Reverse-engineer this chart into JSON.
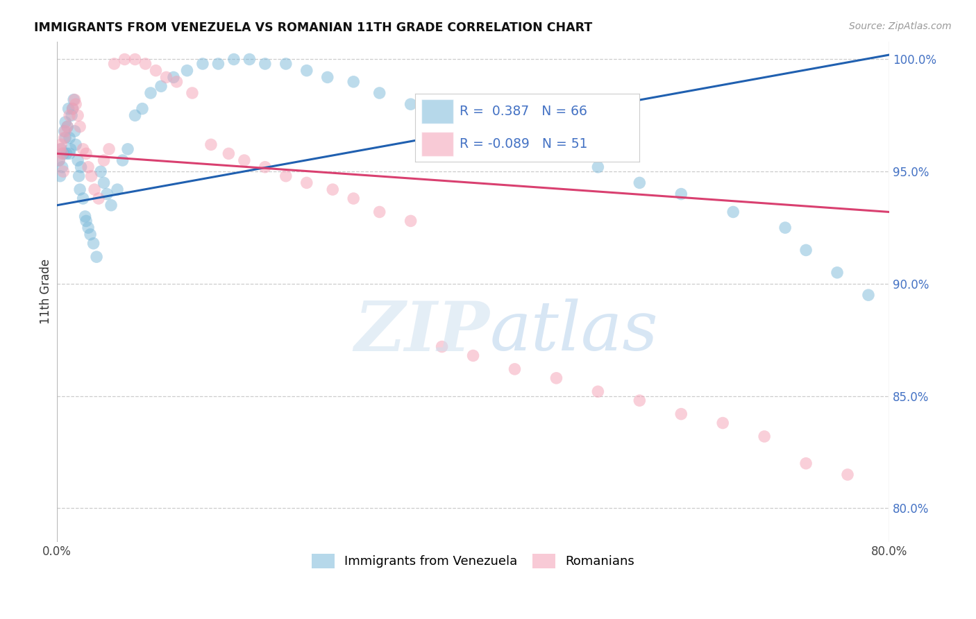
{
  "title": "IMMIGRANTS FROM VENEZUELA VS ROMANIAN 11TH GRADE CORRELATION CHART",
  "source": "Source: ZipAtlas.com",
  "ylabel": "11th Grade",
  "xlim": [
    0.0,
    0.8
  ],
  "ylim": [
    0.785,
    1.008
  ],
  "yticks": [
    0.8,
    0.85,
    0.9,
    0.95,
    1.0
  ],
  "ytick_labels": [
    "80.0%",
    "85.0%",
    "90.0%",
    "95.0%",
    "100.0%"
  ],
  "blue_label": "Immigrants from Venezuela",
  "pink_label": "Romanians",
  "blue_R": "0.387",
  "blue_N": "66",
  "pink_R": "-0.089",
  "pink_N": "51",
  "blue_color": "#7ab8d9",
  "pink_color": "#f4a0b5",
  "blue_line_color": "#2060b0",
  "pink_line_color": "#d94070",
  "background_color": "#ffffff",
  "blue_line_x0": 0.0,
  "blue_line_y0": 0.935,
  "blue_line_x1": 0.8,
  "blue_line_y1": 1.002,
  "pink_line_x0": 0.0,
  "pink_line_y0": 0.958,
  "pink_line_x1": 0.8,
  "pink_line_y1": 0.932,
  "blue_x": [
    0.002,
    0.003,
    0.004,
    0.005,
    0.006,
    0.007,
    0.008,
    0.008,
    0.009,
    0.01,
    0.011,
    0.012,
    0.012,
    0.013,
    0.014,
    0.015,
    0.016,
    0.017,
    0.018,
    0.02,
    0.021,
    0.022,
    0.023,
    0.025,
    0.027,
    0.028,
    0.03,
    0.032,
    0.035,
    0.038,
    0.042,
    0.045,
    0.048,
    0.052,
    0.058,
    0.063,
    0.068,
    0.075,
    0.082,
    0.09,
    0.1,
    0.112,
    0.125,
    0.14,
    0.155,
    0.17,
    0.185,
    0.2,
    0.22,
    0.24,
    0.26,
    0.285,
    0.31,
    0.34,
    0.37,
    0.4,
    0.44,
    0.48,
    0.52,
    0.56,
    0.6,
    0.65,
    0.7,
    0.72,
    0.75,
    0.78
  ],
  "blue_y": [
    0.955,
    0.948,
    0.96,
    0.952,
    0.958,
    0.968,
    0.972,
    0.965,
    0.958,
    0.97,
    0.978,
    0.965,
    0.958,
    0.96,
    0.975,
    0.978,
    0.982,
    0.968,
    0.962,
    0.955,
    0.948,
    0.942,
    0.952,
    0.938,
    0.93,
    0.928,
    0.925,
    0.922,
    0.918,
    0.912,
    0.95,
    0.945,
    0.94,
    0.935,
    0.942,
    0.955,
    0.96,
    0.975,
    0.978,
    0.985,
    0.988,
    0.992,
    0.995,
    0.998,
    0.998,
    1.0,
    1.0,
    0.998,
    0.998,
    0.995,
    0.992,
    0.99,
    0.985,
    0.98,
    0.975,
    0.97,
    0.965,
    0.958,
    0.952,
    0.945,
    0.94,
    0.932,
    0.925,
    0.915,
    0.905,
    0.895
  ],
  "pink_x": [
    0.002,
    0.003,
    0.004,
    0.005,
    0.006,
    0.007,
    0.008,
    0.01,
    0.012,
    0.015,
    0.017,
    0.018,
    0.02,
    0.022,
    0.025,
    0.028,
    0.03,
    0.033,
    0.036,
    0.04,
    0.045,
    0.05,
    0.055,
    0.065,
    0.075,
    0.085,
    0.095,
    0.105,
    0.115,
    0.13,
    0.148,
    0.165,
    0.18,
    0.2,
    0.22,
    0.24,
    0.265,
    0.285,
    0.31,
    0.34,
    0.37,
    0.4,
    0.44,
    0.48,
    0.52,
    0.56,
    0.6,
    0.64,
    0.68,
    0.72,
    0.76
  ],
  "pink_y": [
    0.955,
    0.96,
    0.962,
    0.958,
    0.95,
    0.965,
    0.968,
    0.97,
    0.975,
    0.978,
    0.982,
    0.98,
    0.975,
    0.97,
    0.96,
    0.958,
    0.952,
    0.948,
    0.942,
    0.938,
    0.955,
    0.96,
    0.998,
    1.0,
    1.0,
    0.998,
    0.995,
    0.992,
    0.99,
    0.985,
    0.962,
    0.958,
    0.955,
    0.952,
    0.948,
    0.945,
    0.942,
    0.938,
    0.932,
    0.928,
    0.872,
    0.868,
    0.862,
    0.858,
    0.852,
    0.848,
    0.842,
    0.838,
    0.832,
    0.82,
    0.815
  ]
}
